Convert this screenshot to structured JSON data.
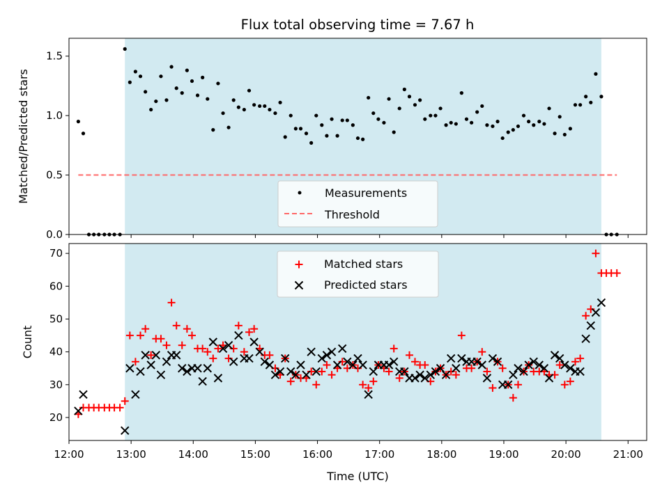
{
  "chart_data": {
    "title": "Flux total observing time = 7.67 h",
    "xlabel": "Time (UTC)",
    "x_units": "hours UTC",
    "xlim": [
      12.0,
      21.3
    ],
    "x_ticks": [
      12,
      13,
      14,
      15,
      16,
      17,
      18,
      19,
      20,
      21
    ],
    "x_tick_labels": [
      "12:00",
      "13:00",
      "14:00",
      "15:00",
      "16:00",
      "17:00",
      "18:00",
      "19:00",
      "20:00",
      "21:00"
    ],
    "observing_window": {
      "start": 12.9,
      "end": 20.57,
      "color": "#add8e6"
    },
    "colors": {
      "measurements": "#000000",
      "threshold": "#ff6666",
      "matched": "#ff0000",
      "predicted": "#000000",
      "shade": "#add8e6"
    },
    "panels": [
      {
        "id": "ratio",
        "type": "scatter",
        "ylabel": "Matched/Predicted stars",
        "ylim": [
          0,
          1.65
        ],
        "y_ticks": [
          0.0,
          0.5,
          1.0,
          1.5
        ],
        "y_tick_labels": [
          "0.0",
          "0.5",
          "1.0",
          "1.5"
        ],
        "legend_position": "lower-center",
        "series": [
          {
            "name": "Measurements",
            "marker": "dot",
            "x": [
              12.15,
              12.23,
              12.32,
              12.4,
              12.48,
              12.57,
              12.65,
              12.73,
              12.82,
              12.9,
              12.98,
              13.07,
              13.15,
              13.23,
              13.32,
              13.4,
              13.48,
              13.57,
              13.65,
              13.73,
              13.82,
              13.9,
              13.98,
              14.07,
              14.15,
              14.23,
              14.32,
              14.4,
              14.48,
              14.57,
              14.65,
              14.73,
              14.82,
              14.9,
              14.98,
              15.07,
              15.15,
              15.23,
              15.32,
              15.4,
              15.48,
              15.57,
              15.65,
              15.73,
              15.82,
              15.9,
              15.98,
              16.07,
              16.15,
              16.23,
              16.32,
              16.4,
              16.48,
              16.57,
              16.65,
              16.73,
              16.82,
              16.9,
              16.98,
              17.07,
              17.15,
              17.23,
              17.32,
              17.4,
              17.48,
              17.57,
              17.65,
              17.73,
              17.82,
              17.9,
              17.98,
              18.07,
              18.15,
              18.23,
              18.32,
              18.4,
              18.48,
              18.57,
              18.65,
              18.73,
              18.82,
              18.9,
              18.98,
              19.07,
              19.15,
              19.23,
              19.32,
              19.4,
              19.48,
              19.57,
              19.65,
              19.73,
              19.82,
              19.9,
              19.98,
              20.07,
              20.15,
              20.23,
              20.32,
              20.4,
              20.48,
              20.57,
              20.65,
              20.73,
              20.82
            ],
            "y": [
              0.95,
              0.85,
              0,
              0,
              0,
              0,
              0,
              0,
              0,
              1.56,
              1.28,
              1.37,
              1.33,
              1.2,
              1.05,
              1.12,
              1.33,
              1.13,
              1.41,
              1.23,
              1.19,
              1.38,
              1.29,
              1.17,
              1.32,
              1.14,
              0.88,
              1.27,
              1.02,
              0.9,
              1.13,
              1.07,
              1.05,
              1.21,
              1.09,
              1.08,
              1.08,
              1.05,
              1.02,
              1.11,
              0.82,
              1.0,
              0.89,
              0.89,
              0.85,
              0.77,
              1.0,
              0.92,
              0.83,
              0.97,
              0.83,
              0.96,
              0.96,
              0.92,
              0.81,
              0.8,
              1.15,
              1.02,
              0.97,
              0.94,
              1.14,
              0.86,
              1.06,
              1.22,
              1.16,
              1.09,
              1.13,
              0.97,
              1.0,
              1.0,
              1.06,
              0.92,
              0.94,
              0.93,
              1.19,
              0.97,
              0.94,
              1.03,
              1.08,
              0.92,
              0.91,
              0.95,
              0.81,
              0.86,
              0.88,
              0.91,
              1.0,
              0.95,
              0.92,
              0.95,
              0.93,
              1.06,
              0.85,
              0.99,
              0.84,
              0.89,
              1.09,
              1.09,
              1.16,
              1.11,
              1.35,
              1.16,
              0,
              0,
              0
            ]
          },
          {
            "name": "Threshold",
            "marker": "dashed-line",
            "x": [
              12.15,
              20.82
            ],
            "y": [
              0.5,
              0.5
            ]
          }
        ]
      },
      {
        "id": "counts",
        "type": "scatter",
        "ylabel": "Count",
        "ylim": [
          13,
          73
        ],
        "y_ticks": [
          20,
          30,
          40,
          50,
          60,
          70
        ],
        "y_tick_labels": [
          "20",
          "30",
          "40",
          "50",
          "60",
          "70"
        ],
        "legend_position": "upper-center",
        "series": [
          {
            "name": "Matched stars",
            "marker": "plus",
            "x": [
              12.15,
              12.23,
              12.32,
              12.4,
              12.48,
              12.57,
              12.65,
              12.73,
              12.82,
              12.9,
              12.98,
              13.07,
              13.15,
              13.23,
              13.32,
              13.4,
              13.48,
              13.57,
              13.65,
              13.73,
              13.82,
              13.9,
              13.98,
              14.07,
              14.15,
              14.23,
              14.32,
              14.4,
              14.48,
              14.57,
              14.65,
              14.73,
              14.82,
              14.9,
              14.98,
              15.07,
              15.15,
              15.23,
              15.32,
              15.4,
              15.48,
              15.57,
              15.65,
              15.73,
              15.82,
              15.9,
              15.98,
              16.07,
              16.15,
              16.23,
              16.32,
              16.4,
              16.48,
              16.57,
              16.65,
              16.73,
              16.82,
              16.9,
              16.98,
              17.07,
              17.15,
              17.23,
              17.32,
              17.4,
              17.48,
              17.57,
              17.65,
              17.73,
              17.82,
              17.9,
              17.98,
              18.07,
              18.15,
              18.23,
              18.32,
              18.4,
              18.48,
              18.57,
              18.65,
              18.73,
              18.82,
              18.9,
              18.98,
              19.07,
              19.15,
              19.23,
              19.32,
              19.4,
              19.48,
              19.57,
              19.65,
              19.73,
              19.82,
              19.9,
              19.98,
              20.07,
              20.15,
              20.23,
              20.32,
              20.4,
              20.48,
              20.57,
              20.65,
              20.73,
              20.82
            ],
            "y": [
              21,
              23,
              23,
              23,
              23,
              23,
              23,
              23,
              23,
              25,
              45,
              37,
              45,
              47,
              39,
              44,
              44,
              42,
              55,
              48,
              42,
              47,
              45,
              41,
              41,
              40,
              38,
              41,
              42,
              38,
              41,
              48,
              40,
              46,
              47,
              41,
              39,
              39,
              35,
              33,
              38,
              31,
              33,
              32,
              32,
              34,
              30,
              34,
              36,
              33,
              35,
              37,
              35,
              36,
              35,
              30,
              29,
              31,
              36,
              35,
              34,
              41,
              32,
              34,
              39,
              37,
              36,
              36,
              31,
              34,
              35,
              33,
              34,
              33,
              45,
              35,
              35,
              37,
              40,
              34,
              29,
              37,
              35,
              30,
              26,
              30,
              34,
              36,
              34,
              34,
              34,
              33,
              33,
              36,
              30,
              31,
              37,
              38,
              51,
              53,
              70,
              64,
              64,
              64,
              64
            ]
          },
          {
            "name": "Predicted stars",
            "marker": "x",
            "x": [
              12.15,
              12.23,
              12.9,
              12.98,
              13.07,
              13.15,
              13.23,
              13.32,
              13.4,
              13.48,
              13.57,
              13.65,
              13.73,
              13.82,
              13.9,
              13.98,
              14.07,
              14.15,
              14.23,
              14.32,
              14.4,
              14.48,
              14.57,
              14.65,
              14.73,
              14.82,
              14.9,
              14.98,
              15.07,
              15.15,
              15.23,
              15.32,
              15.4,
              15.48,
              15.57,
              15.65,
              15.73,
              15.82,
              15.9,
              15.98,
              16.07,
              16.15,
              16.23,
              16.32,
              16.4,
              16.48,
              16.57,
              16.65,
              16.73,
              16.82,
              16.9,
              16.98,
              17.07,
              17.15,
              17.23,
              17.32,
              17.4,
              17.48,
              17.57,
              17.65,
              17.73,
              17.82,
              17.9,
              17.98,
              18.07,
              18.15,
              18.23,
              18.32,
              18.4,
              18.48,
              18.57,
              18.65,
              18.73,
              18.82,
              18.9,
              18.98,
              19.07,
              19.15,
              19.23,
              19.32,
              19.4,
              19.48,
              19.57,
              19.65,
              19.73,
              19.82,
              19.9,
              19.98,
              20.07,
              20.15,
              20.23,
              20.32,
              20.4,
              20.48,
              20.57
            ],
            "y": [
              22,
              27,
              16,
              35,
              27,
              34,
              39,
              36,
              39,
              33,
              37,
              39,
              39,
              35,
              34,
              35,
              35,
              31,
              35,
              43,
              32,
              41,
              42,
              37,
              45,
              38,
              38,
              43,
              40,
              37,
              36,
              33,
              34,
              38,
              34,
              33,
              36,
              33,
              40,
              34,
              38,
              39,
              40,
              36,
              41,
              37,
              36,
              38,
              36,
              27,
              34,
              36,
              36,
              36,
              37,
              34,
              34,
              32,
              32,
              33,
              32,
              33,
              34,
              35,
              33,
              38,
              35,
              38,
              37,
              37,
              37,
              36,
              32,
              38,
              37,
              30,
              30,
              33,
              35,
              34,
              36,
              37,
              36,
              35,
              32,
              39,
              38,
              36,
              35,
              34,
              34,
              44,
              48,
              52,
              55
            ]
          }
        ]
      }
    ]
  }
}
